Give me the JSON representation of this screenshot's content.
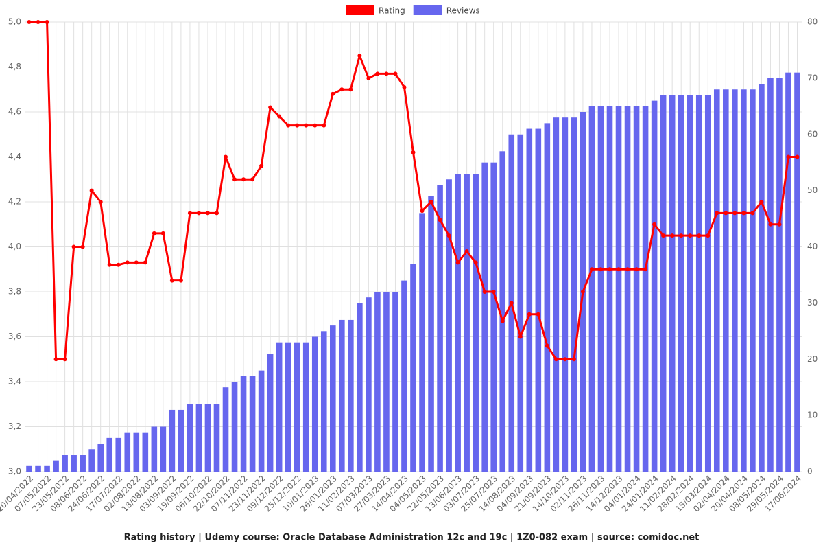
{
  "chart_data": {
    "type": "bar",
    "title": "Rating history | Udemy course: Oracle Database Administration 12c and 19c  | 1Z0-082 exam | source: comidoc.net",
    "categories": [
      "20/04/2022",
      null,
      "07/05/2022",
      null,
      "23/05/2022",
      null,
      "08/06/2022",
      null,
      "24/06/2022",
      null,
      "17/07/2022",
      null,
      "02/08/2022",
      null,
      "18/08/2022",
      null,
      "03/09/2022",
      null,
      "19/09/2022",
      null,
      "06/10/2022",
      null,
      "22/10/2022",
      null,
      "07/11/2022",
      null,
      "23/11/2022",
      null,
      "09/12/2022",
      null,
      "25/12/2022",
      null,
      "10/01/2023",
      null,
      "26/01/2023",
      null,
      "11/02/2023",
      null,
      "07/03/2023",
      null,
      "27/03/2023",
      null,
      "14/04/2023",
      null,
      "04/05/2023",
      null,
      "22/05/2023",
      null,
      "13/06/2023",
      null,
      "03/07/2023",
      null,
      "25/07/2023",
      null,
      "14/08/2023",
      null,
      "04/09/2023",
      null,
      "21/09/2023",
      null,
      "14/10/2023",
      null,
      "02/11/2023",
      null,
      "26/11/2023",
      null,
      "14/12/2023",
      null,
      "04/01/2024",
      null,
      "24/01/2024",
      null,
      "11/02/2024",
      null,
      "28/02/2024",
      null,
      "15/03/2024",
      null,
      "02/04/2024",
      null,
      "20/04/2024",
      null,
      "08/05/2024",
      null,
      "29/05/2024",
      null,
      "17/06/2024"
    ],
    "series": [
      {
        "name": "Rating",
        "type": "line",
        "color": "#ff0000",
        "axis": "y",
        "values": [
          5.0,
          5.0,
          5.0,
          3.5,
          3.5,
          4.0,
          4.0,
          4.25,
          4.2,
          3.92,
          3.92,
          3.93,
          3.93,
          3.93,
          4.06,
          4.06,
          3.85,
          3.85,
          4.15,
          4.15,
          4.15,
          4.15,
          4.4,
          4.3,
          4.3,
          4.3,
          4.36,
          4.62,
          4.58,
          4.54,
          4.54,
          4.54,
          4.54,
          4.54,
          4.68,
          4.7,
          4.7,
          4.85,
          4.75,
          4.77,
          4.77,
          4.77,
          4.71,
          4.42,
          4.16,
          4.2,
          4.12,
          4.05,
          3.93,
          3.98,
          3.93,
          3.8,
          3.8,
          3.67,
          3.75,
          3.6,
          3.7,
          3.7,
          3.56,
          3.5,
          3.5,
          3.5,
          3.8,
          3.9,
          3.9,
          3.9,
          3.9,
          3.9,
          3.9,
          3.9,
          4.1,
          4.05,
          4.05,
          4.05,
          4.05,
          4.05,
          4.05,
          4.15,
          4.15,
          4.15,
          4.15,
          4.15,
          4.2,
          4.1,
          4.1,
          4.4,
          4.4
        ]
      },
      {
        "name": "Reviews",
        "type": "bar",
        "color": "#6666ee",
        "axis": "y2",
        "values": [
          1,
          1,
          1,
          2,
          3,
          3,
          3,
          4,
          5,
          6,
          6,
          7,
          7,
          7,
          8,
          8,
          11,
          11,
          12,
          12,
          12,
          12,
          15,
          16,
          17,
          17,
          18,
          21,
          23,
          23,
          23,
          23,
          24,
          25,
          26,
          27,
          27,
          30,
          31,
          32,
          32,
          32,
          34,
          37,
          46,
          49,
          51,
          52,
          53,
          53,
          53,
          55,
          55,
          57,
          60,
          60,
          61,
          61,
          62,
          63,
          63,
          63,
          64,
          65,
          65,
          65,
          65,
          65,
          65,
          65,
          66,
          67,
          67,
          67,
          67,
          67,
          67,
          68,
          68,
          68,
          68,
          68,
          69,
          70,
          70,
          71,
          71
        ]
      }
    ],
    "ylim": [
      3.0,
      5.0
    ],
    "yticks": [
      {
        "value": 3.0,
        "label": "3,0"
      },
      {
        "value": 3.2,
        "label": "3,2"
      },
      {
        "value": 3.4,
        "label": "3,4"
      },
      {
        "value": 3.6,
        "label": "3,6"
      },
      {
        "value": 3.8,
        "label": "3,8"
      },
      {
        "value": 4.0,
        "label": "4,0"
      },
      {
        "value": 4.2,
        "label": "4,2"
      },
      {
        "value": 4.4,
        "label": "4,4"
      },
      {
        "value": 4.6,
        "label": "4,6"
      },
      {
        "value": 4.8,
        "label": "4,8"
      },
      {
        "value": 5.0,
        "label": "5,0"
      }
    ],
    "y2lim": [
      0,
      80
    ],
    "y2ticks": [
      0,
      10,
      20,
      30,
      40,
      50,
      60,
      70,
      80
    ],
    "grid": true,
    "legend": "top"
  }
}
